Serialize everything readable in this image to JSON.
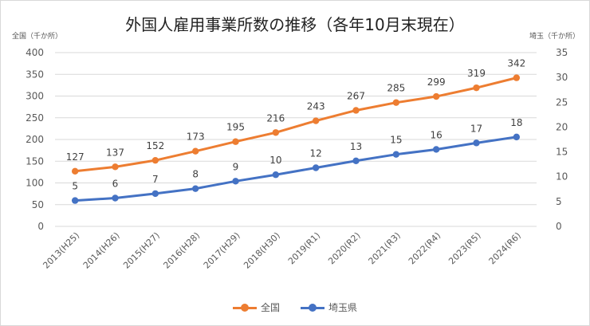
{
  "chart_data": {
    "type": "line",
    "title": "外国人雇用事業所数の推移（各年10月末現在）",
    "y_left_label": "全国（千か所）",
    "y_right_label": "埼玉（千か所）",
    "categories": [
      "2013(H25)",
      "2014(H26)",
      "2015(H27)",
      "2016(H28)",
      "2017(H29)",
      "2018(H30)",
      "2019(R1)",
      "2020(R2)",
      "2021(R3)",
      "2022(R4)",
      "2023(R5)",
      "2024(R6)"
    ],
    "y_left": {
      "min": 0,
      "max": 400,
      "step": 50,
      "ticks": [
        "0",
        "50",
        "100",
        "150",
        "200",
        "250",
        "300",
        "350",
        "400"
      ]
    },
    "y_right": {
      "min": 0,
      "max": 35,
      "step": 5,
      "ticks": [
        "0",
        "5",
        "10",
        "15",
        "20",
        "25",
        "30",
        "35"
      ]
    },
    "grid": true,
    "legend_position": "bottom",
    "series": [
      {
        "name": "全国",
        "axis": "left",
        "color": "#ED7D31",
        "values": [
          127,
          137,
          152,
          173,
          195,
          216,
          243,
          267,
          285,
          299,
          319,
          342
        ],
        "labels": [
          "127",
          "137",
          "152",
          "173",
          "195",
          "216",
          "243",
          "267",
          "285",
          "299",
          "319",
          "342"
        ]
      },
      {
        "name": "埼玉県",
        "axis": "right",
        "color": "#4472C4",
        "values": [
          5.2,
          5.7,
          6.6,
          7.6,
          9.1,
          10.4,
          11.8,
          13.2,
          14.5,
          15.5,
          16.8,
          18.0
        ],
        "labels": [
          "5",
          "6",
          "7",
          "8",
          "9",
          "10",
          "12",
          "13",
          "15",
          "16",
          "17",
          "18"
        ]
      }
    ]
  }
}
